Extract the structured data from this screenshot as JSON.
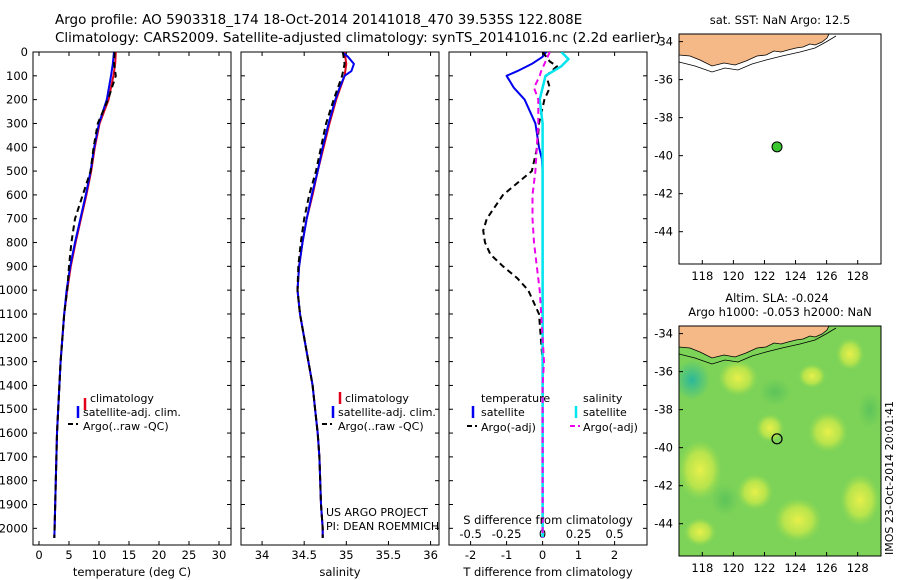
{
  "title": {
    "line1": "Argo profile: AO 5903318_174 18-Oct-2014 20141018_470 39.535S 122.808E",
    "line2": "Climatology: CARS2009. Satellite-adjusted climatology: synTS_20141016.nc (2.2d earlier)"
  },
  "colors": {
    "climatology": "#e0001b",
    "satellite": "#0000ee",
    "argo": "#000000",
    "salinity_sat": "#00e5ee",
    "salinity_argo": "#ee00ee",
    "land": "#f5b887",
    "float_marker": "#39c630"
  },
  "depth_axis": {
    "ticks": [
      "0",
      "100",
      "200",
      "300",
      "400",
      "500",
      "600",
      "700",
      "800",
      "900",
      "1000",
      "1100",
      "1200",
      "1300",
      "1400",
      "1500",
      "1600",
      "1700",
      "1800",
      "1900",
      "2000"
    ],
    "range": [
      0,
      2070
    ],
    "reversed": true
  },
  "chart_data": [
    {
      "id": "temperature",
      "type": "line",
      "xlabel": "temperature (deg C)",
      "xlim": [
        -1,
        32
      ],
      "xticks": [
        "0",
        "5",
        "10",
        "15",
        "20",
        "25",
        "30"
      ],
      "ylim": [
        2070,
        0
      ],
      "legend": [
        "climatology",
        "satellite-adj. clim.",
        "Argo(..raw -QC)"
      ],
      "series": [
        {
          "name": "climatology",
          "depth": [
            0,
            50,
            100,
            200,
            300,
            400,
            500,
            600,
            700,
            800,
            900,
            1000,
            1100,
            1200,
            1300,
            1400,
            1500,
            1600,
            1700,
            1800,
            1900,
            2000,
            2040
          ],
          "values": [
            12.8,
            12.7,
            12.4,
            11.6,
            10.1,
            9.3,
            8.7,
            7.9,
            7.0,
            6.1,
            5.3,
            4.7,
            4.2,
            3.9,
            3.6,
            3.4,
            3.2,
            3.0,
            2.9,
            2.8,
            2.7,
            2.6,
            2.55
          ]
        },
        {
          "name": "satellite-adj. clim.",
          "depth": [
            0,
            50,
            100,
            200,
            300,
            400,
            500,
            600,
            700,
            800,
            900,
            1000,
            1100,
            1200,
            1300,
            1400,
            1500,
            1600,
            1700,
            1800,
            1900,
            2000,
            2040
          ],
          "values": [
            12.5,
            12.3,
            12.0,
            11.3,
            10.0,
            9.2,
            8.6,
            7.8,
            6.9,
            6.0,
            5.2,
            4.6,
            4.2,
            3.9,
            3.6,
            3.4,
            3.2,
            3.0,
            2.9,
            2.8,
            2.7,
            2.6,
            2.55
          ]
        },
        {
          "name": "Argo(..raw -QC)",
          "depth": [
            0,
            50,
            100,
            200,
            300,
            400,
            500,
            600,
            700,
            800,
            900,
            1000,
            1100,
            1200,
            1300,
            1400,
            1500,
            1600,
            1700,
            1800,
            1900,
            2000,
            2040
          ],
          "values": [
            12.6,
            12.5,
            12.8,
            11.5,
            9.8,
            9.1,
            8.6,
            7.3,
            6.0,
            5.4,
            5.0,
            4.7,
            4.2,
            3.9,
            3.6,
            3.4,
            3.2,
            3.0,
            2.9,
            2.8,
            2.7,
            2.6,
            2.55
          ]
        }
      ]
    },
    {
      "id": "salinity",
      "type": "line",
      "xlabel": "salinity",
      "xlim": [
        33.75,
        36.1
      ],
      "xticks": [
        "34",
        "34.5",
        "35",
        "35.5",
        "36"
      ],
      "ylim": [
        2070,
        0
      ],
      "legend": [
        "climatology",
        "satellite-adj. clim.",
        "Argo(..raw -QC)"
      ],
      "series": [
        {
          "name": "climatology",
          "depth": [
            0,
            50,
            100,
            150,
            200,
            300,
            400,
            500,
            600,
            700,
            800,
            900,
            1000,
            1100,
            1200,
            1300,
            1400,
            1500,
            1600,
            1700,
            1800,
            1900,
            2000,
            2040
          ],
          "values": [
            34.98,
            35.0,
            34.98,
            34.93,
            34.88,
            34.8,
            34.73,
            34.66,
            34.6,
            34.53,
            34.48,
            34.44,
            34.42,
            34.45,
            34.5,
            34.55,
            34.6,
            34.63,
            34.66,
            34.68,
            34.69,
            34.7,
            34.72,
            34.72
          ]
        },
        {
          "name": "satellite-adj. clim.",
          "depth": [
            0,
            20,
            50,
            80,
            100,
            150,
            200,
            300,
            400,
            500,
            600,
            700,
            800,
            900,
            1000,
            1100,
            1200,
            1300,
            1400,
            1500,
            1600,
            1700,
            1800,
            1900,
            2000,
            2040
          ],
          "values": [
            34.95,
            35.02,
            35.09,
            35.06,
            34.98,
            34.92,
            34.87,
            34.79,
            34.72,
            34.66,
            34.59,
            34.53,
            34.48,
            34.44,
            34.42,
            34.45,
            34.5,
            34.55,
            34.6,
            34.63,
            34.66,
            34.68,
            34.69,
            34.7,
            34.72,
            34.72
          ]
        },
        {
          "name": "Argo(..raw -QC)",
          "depth": [
            0,
            50,
            100,
            200,
            300,
            400,
            500,
            600,
            700,
            800,
            900,
            1000,
            1100,
            1200,
            1300,
            1400,
            1500,
            1600,
            1700,
            1800,
            1900,
            2000,
            2040
          ],
          "values": [
            34.96,
            34.98,
            34.95,
            34.85,
            34.76,
            34.7,
            34.64,
            34.56,
            34.5,
            34.46,
            34.43,
            34.42,
            34.45,
            34.5,
            34.55,
            34.6,
            34.63,
            34.66,
            34.68,
            34.69,
            34.7,
            34.72,
            34.72
          ]
        }
      ]
    },
    {
      "id": "difference",
      "type": "line",
      "xlabel": "T difference from climatology",
      "top_label": "S difference from climatology",
      "xlim": [
        -2.6,
        2.9
      ],
      "xticks": [
        "-2",
        "-1",
        "0",
        "1",
        "2"
      ],
      "top_ticks": [
        "-0.5",
        "-0.25",
        "0",
        "0.25",
        "0.5"
      ],
      "ylim": [
        2070,
        0
      ],
      "legend": {
        "temperature_header": "temperature",
        "salinity_header": "salinity",
        "items": [
          "satellite",
          "Argo(-adj)",
          "satellite",
          "Argo(-adj)"
        ]
      },
      "series": [
        {
          "name": "temperature satellite",
          "depth": [
            0,
            20,
            50,
            80,
            100,
            150,
            200,
            300,
            400,
            450,
            500,
            600,
            800,
            1000,
            1500,
            2040
          ],
          "values": [
            0.1,
            0.0,
            -0.3,
            -0.7,
            -1.0,
            -0.8,
            -0.5,
            -0.2,
            -0.1,
            -0.02,
            0.0,
            0.0,
            0.0,
            0.0,
            0.0,
            0.0
          ]
        },
        {
          "name": "temperature Argo(-adj)",
          "depth": [
            0,
            40,
            60,
            100,
            150,
            200,
            300,
            400,
            500,
            600,
            700,
            750,
            800,
            850,
            900,
            950,
            1000,
            1100,
            1200,
            1300,
            1400,
            1500,
            1600,
            1700,
            1800,
            1900,
            2000,
            2040
          ],
          "values": [
            0.0,
            0.2,
            0.4,
            0.1,
            0.2,
            0.05,
            -0.1,
            -0.15,
            -0.3,
            -1.1,
            -1.55,
            -1.65,
            -1.6,
            -1.45,
            -1.1,
            -0.7,
            -0.4,
            -0.1,
            -0.05,
            0.0,
            0.0,
            0.0,
            0.0,
            0.0,
            0.0,
            0.0,
            0.0,
            0.0
          ]
        },
        {
          "name": "salinity satellite",
          "depth": [
            0,
            30,
            60,
            100,
            200,
            300,
            400,
            500,
            1000,
            2040
          ],
          "values": [
            0.13,
            0.18,
            0.13,
            0.02,
            -0.02,
            0.0,
            0.0,
            0.0,
            0.0,
            0.0
          ]
        },
        {
          "name": "salinity Argo(-adj)",
          "depth": [
            0,
            40,
            80,
            100,
            150,
            200,
            300,
            400,
            500,
            600,
            700,
            800,
            900,
            1000,
            1100,
            1200,
            1300,
            1400,
            1500,
            1600,
            1700,
            1800,
            1900,
            2000,
            2040
          ],
          "values": [
            0.05,
            0.02,
            -0.01,
            -0.02,
            -0.06,
            -0.03,
            -0.03,
            -0.04,
            -0.05,
            -0.07,
            -0.07,
            -0.06,
            -0.04,
            -0.02,
            -0.01,
            0.0,
            0.01,
            0.0,
            0.0,
            0.0,
            0.0,
            0.0,
            0.0,
            0.0,
            0.0
          ]
        }
      ]
    },
    {
      "id": "sst_map",
      "type": "scatter",
      "title": "sat. SST: NaN Argo: 12.5",
      "xlim": [
        116.5,
        129.5
      ],
      "ylim": [
        -45.7,
        -33.6
      ],
      "xticks": [
        "118",
        "120",
        "122",
        "124",
        "126",
        "128"
      ],
      "yticks": [
        "-34",
        "-36",
        "-38",
        "-40",
        "-42",
        "-44"
      ],
      "float": {
        "lon": 122.808,
        "lat": -39.535
      }
    },
    {
      "id": "sla_map",
      "type": "heatmap",
      "title_line1": "Altim. SLA: -0.024",
      "title_line2": "Argo h1000: -0.053 h2000: NaN",
      "xlim": [
        116.5,
        129.5
      ],
      "ylim": [
        -45.7,
        -33.6
      ],
      "xticks": [
        "118",
        "120",
        "122",
        "124",
        "126",
        "128"
      ],
      "yticks": [
        "-34",
        "-36",
        "-38",
        "-40",
        "-42",
        "-44"
      ],
      "float": {
        "lon": 122.808,
        "lat": -39.535
      }
    }
  ],
  "legend_tp": [
    "climatology",
    "satellite-adj. clim.",
    "Argo(..raw -QC)"
  ],
  "credit": {
    "line1": "US ARGO PROJECT",
    "line2": "PI: DEAN ROEMMICH"
  },
  "side_stamp": "IMOS 23-Oct-2014 20:01:41"
}
